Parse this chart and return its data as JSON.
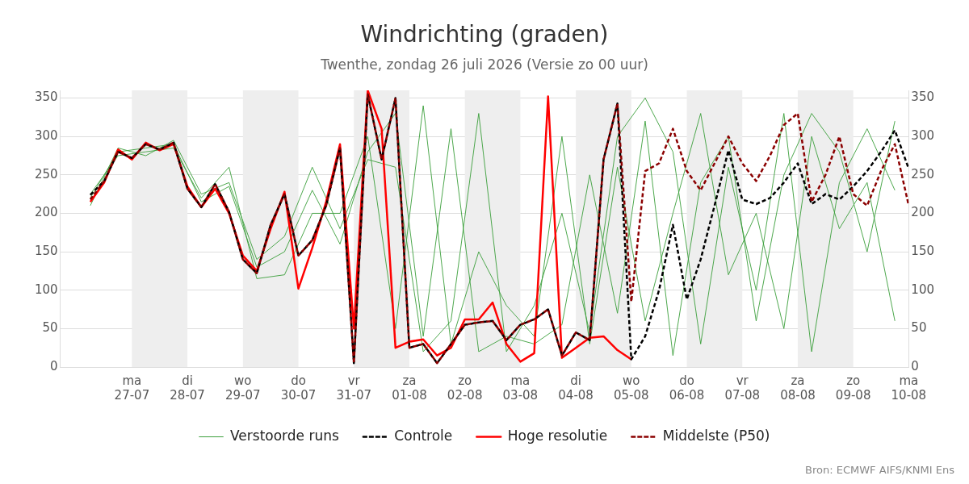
{
  "chart_data": {
    "type": "line",
    "title": "Windrichting (graden)",
    "subtitle": "Twenthe, zondag 26 juli 2026 (Versie zo 00 uur)",
    "annotations": [
      "Bron: ECMWF AIFS/KNMI Ens"
    ],
    "xlim": [
      "2026-07-25T17:00",
      "2026-08-10T00:00"
    ],
    "xticks": [
      {
        "value": "2026-07-27T00:00",
        "label": "ma\n27-07"
      },
      {
        "value": "2026-07-28T00:00",
        "label": "di\n28-07"
      },
      {
        "value": "2026-07-29T00:00",
        "label": "wo\n29-07"
      },
      {
        "value": "2026-07-30T00:00",
        "label": "do\n30-07"
      },
      {
        "value": "2026-07-31T00:00",
        "label": "vr\n31-07"
      },
      {
        "value": "2026-08-01T00:00",
        "label": "za\n01-08"
      },
      {
        "value": "2026-08-02T00:00",
        "label": "zo\n02-08"
      },
      {
        "value": "2026-08-03T00:00",
        "label": "ma\n03-08"
      },
      {
        "value": "2026-08-04T00:00",
        "label": "di\n04-08"
      },
      {
        "value": "2026-08-05T00:00",
        "label": "wo\n05-08"
      },
      {
        "value": "2026-08-06T00:00",
        "label": "do\n06-08"
      },
      {
        "value": "2026-08-07T00:00",
        "label": "vr\n07-08"
      },
      {
        "value": "2026-08-08T00:00",
        "label": "za\n08-08"
      },
      {
        "value": "2026-08-09T00:00",
        "label": "zo\n09-08"
      },
      {
        "value": "2026-08-10T00:00",
        "label": "ma\n10-08"
      }
    ],
    "ylim": [
      0,
      360
    ],
    "yticks": [
      0,
      50,
      100,
      150,
      200,
      250,
      300,
      350
    ],
    "y2lim": [
      0,
      360
    ],
    "y2ticks": [
      0,
      50,
      100,
      150,
      200,
      250,
      300,
      350
    ],
    "grid": "y",
    "legend": "bottom",
    "marker": "none",
    "bands": [
      {
        "axis": "x",
        "from": "2026-07-27T00:00",
        "to": "2026-07-28T00:00",
        "color": "#eeeeee"
      },
      {
        "axis": "x",
        "from": "2026-07-29T00:00",
        "to": "2026-07-30T00:00",
        "color": "#eeeeee"
      },
      {
        "axis": "x",
        "from": "2026-07-31T00:00",
        "to": "2026-08-01T00:00",
        "color": "#eeeeee"
      },
      {
        "axis": "x",
        "from": "2026-08-02T00:00",
        "to": "2026-08-03T00:00",
        "color": "#eeeeee"
      },
      {
        "axis": "x",
        "from": "2026-08-04T00:00",
        "to": "2026-08-05T00:00",
        "color": "#eeeeee"
      },
      {
        "axis": "x",
        "from": "2026-08-06T00:00",
        "to": "2026-08-07T00:00",
        "color": "#eeeeee"
      },
      {
        "axis": "x",
        "from": "2026-08-08T00:00",
        "to": "2026-08-09T00:00",
        "color": "#eeeeee"
      }
    ],
    "series": [
      {
        "name": "Verstoorde runs",
        "color": "#3a9e3a",
        "line_style": "solid",
        "x": [
          "2026-07-26T06:00",
          "2026-07-26T18:00",
          "2026-07-27T06:00",
          "2026-07-27T18:00",
          "2026-07-28T06:00",
          "2026-07-28T18:00",
          "2026-07-29T06:00",
          "2026-07-29T18:00",
          "2026-07-30T06:00",
          "2026-07-30T18:00",
          "2026-07-31T06:00",
          "2026-07-31T18:00",
          "2026-08-01T06:00",
          "2026-08-01T18:00",
          "2026-08-02T06:00",
          "2026-08-02T18:00",
          "2026-08-03T06:00",
          "2026-08-03T18:00",
          "2026-08-04T06:00",
          "2026-08-04T18:00",
          "2026-08-05T06:00",
          "2026-08-05T18:00",
          "2026-08-06T06:00",
          "2026-08-06T18:00",
          "2026-08-07T06:00",
          "2026-08-07T18:00",
          "2026-08-08T06:00",
          "2026-08-08T18:00",
          "2026-08-09T06:00",
          "2026-08-09T18:00"
        ],
        "values": [
          220,
          280,
          285,
          290,
          215,
          235,
          130,
          150,
          230,
          160,
          280,
          330,
          40,
          310,
          20,
          40,
          30,
          55,
          250,
          70,
          320,
          15,
          240,
          300,
          60,
          250,
          330,
          280,
          150,
          320
        ]
      },
      {
        "color": "#3a9e3a",
        "line_style": "solid",
        "x": [
          "2026-07-26T06:00",
          "2026-07-26T18:00",
          "2026-07-27T06:00",
          "2026-07-27T18:00",
          "2026-07-28T06:00",
          "2026-07-28T18:00",
          "2026-07-29T06:00",
          "2026-07-29T18:00",
          "2026-07-30T06:00",
          "2026-07-30T18:00",
          "2026-07-31T06:00",
          "2026-07-31T18:00",
          "2026-08-01T06:00",
          "2026-08-01T18:00",
          "2026-08-02T06:00",
          "2026-08-02T18:00",
          "2026-08-03T06:00",
          "2026-08-03T18:00",
          "2026-08-04T06:00",
          "2026-08-04T18:00",
          "2026-08-05T06:00",
          "2026-08-05T18:00",
          "2026-08-06T06:00",
          "2026-08-06T18:00",
          "2026-08-07T06:00",
          "2026-08-07T18:00",
          "2026-08-08T06:00",
          "2026-08-08T18:00",
          "2026-08-09T06:00",
          "2026-08-09T18:00"
        ],
        "values": [
          225,
          275,
          280,
          285,
          220,
          260,
          115,
          120,
          200,
          200,
          300,
          50,
          340,
          30,
          150,
          80,
          40,
          300,
          30,
          260,
          60,
          200,
          330,
          120,
          200,
          50,
          300,
          180,
          240,
          60
        ]
      },
      {
        "color": "#3a9e3a",
        "line_style": "solid",
        "x": [
          "2026-07-26T06:00",
          "2026-07-26T18:00",
          "2026-07-27T06:00",
          "2026-07-27T18:00",
          "2026-07-28T06:00",
          "2026-07-28T18:00",
          "2026-07-29T06:00",
          "2026-07-29T18:00",
          "2026-07-30T06:00",
          "2026-07-30T18:00",
          "2026-07-31T06:00",
          "2026-07-31T18:00",
          "2026-08-01T06:00",
          "2026-08-01T18:00",
          "2026-08-02T06:00",
          "2026-08-02T18:00",
          "2026-08-03T06:00",
          "2026-08-03T18:00",
          "2026-08-04T06:00",
          "2026-08-04T18:00",
          "2026-08-05T06:00",
          "2026-08-05T18:00",
          "2026-08-06T06:00",
          "2026-08-06T18:00",
          "2026-08-07T06:00",
          "2026-08-07T18:00",
          "2026-08-08T06:00",
          "2026-08-08T18:00",
          "2026-08-09T06:00",
          "2026-08-09T18:00"
        ],
        "values": [
          210,
          285,
          275,
          295,
          225,
          240,
          140,
          170,
          260,
          180,
          270,
          260,
          20,
          60,
          330,
          20,
          80,
          200,
          45,
          300,
          350,
          280,
          30,
          260,
          100,
          330,
          20,
          240,
          310,
          230
        ]
      },
      {
        "name": "Controle",
        "color": "#000000",
        "line_style": "dashed",
        "x": [
          "2026-07-26T06:00",
          "2026-07-26T12:00",
          "2026-07-26T18:00",
          "2026-07-27T00:00",
          "2026-07-27T06:00",
          "2026-07-27T12:00",
          "2026-07-27T18:00",
          "2026-07-28T00:00",
          "2026-07-28T06:00",
          "2026-07-28T12:00",
          "2026-07-28T18:00",
          "2026-07-29T00:00",
          "2026-07-29T06:00",
          "2026-07-29T12:00",
          "2026-07-29T18:00",
          "2026-07-30T00:00",
          "2026-07-30T06:00",
          "2026-07-30T12:00",
          "2026-07-30T18:00",
          "2026-07-31T00:00",
          "2026-07-31T06:00",
          "2026-07-31T12:00",
          "2026-07-31T18:00",
          "2026-08-01T00:00",
          "2026-08-01T06:00",
          "2026-08-01T12:00",
          "2026-08-01T18:00",
          "2026-08-02T00:00",
          "2026-08-02T06:00",
          "2026-08-02T12:00",
          "2026-08-02T18:00",
          "2026-08-03T00:00",
          "2026-08-03T06:00",
          "2026-08-03T12:00",
          "2026-08-03T18:00",
          "2026-08-04T00:00",
          "2026-08-04T06:00",
          "2026-08-04T12:00",
          "2026-08-04T18:00",
          "2026-08-05T00:00",
          "2026-08-05T06:00",
          "2026-08-05T12:00",
          "2026-08-05T18:00",
          "2026-08-06T00:00",
          "2026-08-06T06:00",
          "2026-08-06T12:00",
          "2026-08-06T18:00",
          "2026-08-07T00:00",
          "2026-08-07T06:00",
          "2026-08-07T12:00",
          "2026-08-07T18:00",
          "2026-08-08T00:00",
          "2026-08-08T06:00",
          "2026-08-08T12:00",
          "2026-08-08T18:00",
          "2026-08-09T00:00",
          "2026-08-09T06:00",
          "2026-08-09T12:00",
          "2026-08-09T18:00",
          "2026-08-10T00:00"
        ],
        "values": [
          224,
          242,
          280,
          272,
          290,
          283,
          292,
          232,
          208,
          238,
          202,
          140,
          122,
          185,
          225,
          145,
          165,
          210,
          285,
          5,
          355,
          270,
          350,
          25,
          30,
          5,
          30,
          55,
          58,
          60,
          35,
          55,
          62,
          75,
          15,
          45,
          35,
          270,
          343,
          10,
          40,
          100,
          185,
          88,
          140,
          210,
          282,
          218,
          212,
          220,
          240,
          265,
          212,
          225,
          218,
          235,
          255,
          280,
          308,
          258
        ]
      },
      {
        "name": "Hoge resolutie",
        "color": "#ff0000",
        "line_style": "solid",
        "x": [
          "2026-07-26T06:00",
          "2026-07-26T12:00",
          "2026-07-26T18:00",
          "2026-07-27T00:00",
          "2026-07-27T06:00",
          "2026-07-27T12:00",
          "2026-07-27T18:00",
          "2026-07-28T00:00",
          "2026-07-28T06:00",
          "2026-07-28T12:00",
          "2026-07-28T18:00",
          "2026-07-29T00:00",
          "2026-07-29T06:00",
          "2026-07-29T12:00",
          "2026-07-29T18:00",
          "2026-07-30T00:00",
          "2026-07-30T06:00",
          "2026-07-30T12:00",
          "2026-07-30T18:00",
          "2026-07-31T00:00",
          "2026-07-31T06:00",
          "2026-07-31T12:00",
          "2026-07-31T18:00",
          "2026-08-01T00:00",
          "2026-08-01T06:00",
          "2026-08-01T12:00",
          "2026-08-01T18:00",
          "2026-08-02T00:00",
          "2026-08-02T06:00",
          "2026-08-02T12:00",
          "2026-08-02T18:00",
          "2026-08-03T00:00",
          "2026-08-03T06:00",
          "2026-08-03T12:00",
          "2026-08-03T18:00",
          "2026-08-04T00:00",
          "2026-08-04T06:00",
          "2026-08-04T12:00",
          "2026-08-04T18:00",
          "2026-08-05T00:00"
        ],
        "values": [
          215,
          240,
          283,
          270,
          292,
          282,
          290,
          235,
          208,
          232,
          200,
          145,
          125,
          180,
          228,
          102,
          155,
          215,
          290,
          50,
          360,
          310,
          25,
          33,
          36,
          15,
          25,
          62,
          62,
          84,
          30,
          7,
          18,
          352,
          12,
          25,
          38,
          40,
          22,
          10
        ]
      },
      {
        "name": "Middelste (P50)",
        "color": "#8b0000",
        "line_style": "dashed",
        "x": [
          "2026-07-26T06:00",
          "2026-07-26T12:00",
          "2026-07-26T18:00",
          "2026-07-27T00:00",
          "2026-07-27T06:00",
          "2026-07-27T12:00",
          "2026-07-27T18:00",
          "2026-07-28T00:00",
          "2026-07-28T06:00",
          "2026-07-28T12:00",
          "2026-07-28T18:00",
          "2026-07-29T00:00",
          "2026-07-29T06:00",
          "2026-07-29T12:00",
          "2026-07-29T18:00",
          "2026-07-30T00:00",
          "2026-07-30T06:00",
          "2026-07-30T12:00",
          "2026-07-30T18:00",
          "2026-07-31T00:00",
          "2026-07-31T06:00",
          "2026-07-31T12:00",
          "2026-07-31T18:00",
          "2026-08-01T00:00",
          "2026-08-01T06:00",
          "2026-08-01T12:00",
          "2026-08-01T18:00",
          "2026-08-02T00:00",
          "2026-08-02T06:00",
          "2026-08-02T12:00",
          "2026-08-02T18:00",
          "2026-08-03T00:00",
          "2026-08-03T06:00",
          "2026-08-03T12:00",
          "2026-08-03T18:00",
          "2026-08-04T00:00",
          "2026-08-04T06:00",
          "2026-08-04T12:00",
          "2026-08-04T18:00",
          "2026-08-05T00:00",
          "2026-08-05T06:00",
          "2026-08-05T12:00",
          "2026-08-05T18:00",
          "2026-08-06T00:00",
          "2026-08-06T06:00",
          "2026-08-06T12:00",
          "2026-08-06T18:00",
          "2026-08-07T00:00",
          "2026-08-07T06:00",
          "2026-08-07T12:00",
          "2026-08-07T18:00",
          "2026-08-08T00:00",
          "2026-08-08T06:00",
          "2026-08-08T12:00",
          "2026-08-08T18:00",
          "2026-08-09T00:00",
          "2026-08-09T06:00",
          "2026-08-09T12:00",
          "2026-08-09T18:00",
          "2026-08-10T00:00"
        ],
        "values": [
          218,
          242,
          280,
          272,
          290,
          283,
          292,
          232,
          208,
          238,
          202,
          140,
          122,
          185,
          225,
          145,
          165,
          210,
          285,
          5,
          355,
          270,
          350,
          25,
          30,
          5,
          30,
          55,
          58,
          60,
          35,
          55,
          62,
          75,
          15,
          45,
          35,
          270,
          343,
          85,
          255,
          265,
          310,
          255,
          230,
          265,
          300,
          265,
          242,
          275,
          315,
          330,
          215,
          250,
          300,
          225,
          210,
          255,
          290,
          210
        ]
      }
    ]
  }
}
